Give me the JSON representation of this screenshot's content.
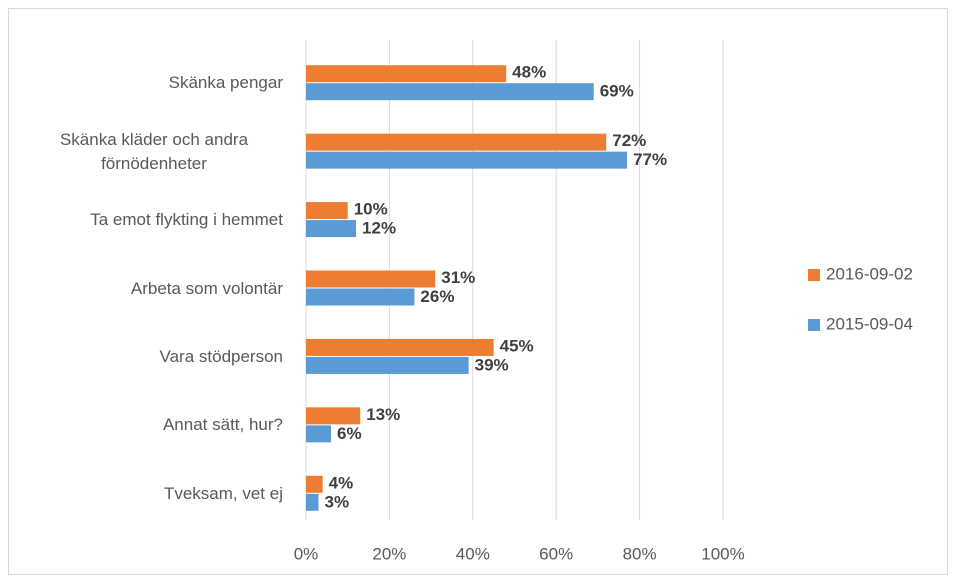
{
  "chart_data": {
    "type": "bar",
    "orientation": "horizontal",
    "categories": [
      "Skänka pengar",
      "Skänka kläder och andra förnödenheter",
      "Ta emot flykting i hemmet",
      "Arbeta som volontär",
      "Vara stödperson",
      "Annat sätt, hur?",
      "Tveksam, vet ej"
    ],
    "series": [
      {
        "name": "2016-09-02",
        "color": "#ed7d31",
        "values": [
          48,
          72,
          10,
          31,
          45,
          13,
          4
        ],
        "value_labels": [
          "48%",
          "72%",
          "10%",
          "31%",
          "45%",
          "13%",
          "4%"
        ]
      },
      {
        "name": "2015-09-04",
        "color": "#5b9bd5",
        "values": [
          69,
          77,
          12,
          26,
          39,
          6,
          3
        ],
        "value_labels": [
          "69%",
          "77%",
          "12%",
          "26%",
          "39%",
          "6%",
          "3%"
        ]
      }
    ],
    "xlim": [
      0,
      100
    ],
    "xticks": [
      {
        "value": 0,
        "label": "0%"
      },
      {
        "value": 20,
        "label": "20%"
      },
      {
        "value": 40,
        "label": "40%"
      },
      {
        "value": 60,
        "label": "60%"
      },
      {
        "value": 80,
        "label": "80%"
      },
      {
        "value": 100,
        "label": "100%"
      }
    ],
    "grid": true,
    "legend": "right"
  }
}
